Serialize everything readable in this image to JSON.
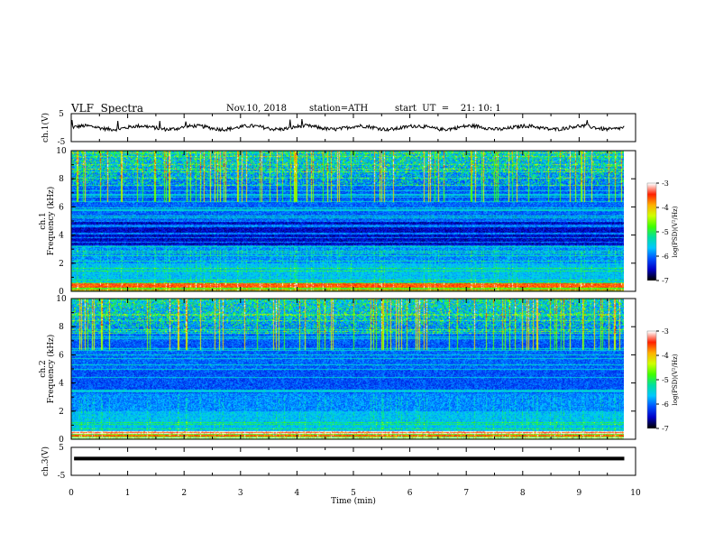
{
  "header": {
    "title": "VLF  Spectra",
    "date": "Nov.10, 2018",
    "station": "station=ATH",
    "start_ut": "start  UT  =    21: 10: 1"
  },
  "chart_data": {
    "type": "heatmap",
    "x_axis": {
      "label": "Time  (min)",
      "range": [
        0,
        10
      ],
      "ticks": [
        "0",
        "1",
        "2",
        "3",
        "4",
        "5",
        "6",
        "7",
        "8",
        "9",
        "10"
      ],
      "data_end": 9.8
    },
    "panels": [
      {
        "name": "ch1-voltage",
        "type": "line",
        "ylabel": "ch.1(V)",
        "ylim": [
          -5,
          5
        ],
        "yticks": [
          "5",
          "-5"
        ],
        "trace_level_approx": 0
      },
      {
        "name": "ch1-spectrogram",
        "type": "heatmap",
        "ylabel_top": "ch.1",
        "ylabel": "Frequency  (kHz)",
        "ylim": [
          0,
          10
        ],
        "yticks": [
          "0",
          "2",
          "4",
          "6",
          "8",
          "10"
        ],
        "colorbar": {
          "label": "log(PSD)(V²/Hz)",
          "range": [
            -7,
            -3
          ],
          "ticks": [
            "-3",
            "-4",
            "-5",
            "-6",
            "-7"
          ]
        }
      },
      {
        "name": "ch2-spectrogram",
        "type": "heatmap",
        "ylabel_top": "ch.2",
        "ylabel": "Frequency  (kHz)",
        "ylim": [
          0,
          10
        ],
        "yticks": [
          "0",
          "2",
          "4",
          "6",
          "8",
          "10"
        ],
        "colorbar": {
          "label": "log(PSD)(V²/Hz)",
          "range": [
            -7,
            -3
          ],
          "ticks": [
            "-3",
            "-4",
            "-5",
            "-6",
            "-7"
          ]
        }
      },
      {
        "name": "ch3-voltage",
        "type": "line",
        "ylabel": "ch.3(V)",
        "ylim": [
          -5,
          5
        ],
        "yticks": [
          "5",
          "-5"
        ],
        "trace_level_approx": 1
      }
    ],
    "colormap": [
      "#000000",
      "#0000c8",
      "#0050ff",
      "#00c8ff",
      "#00e0a0",
      "#40ff00",
      "#d0ff00",
      "#ffb000",
      "#ff2000",
      "#ffffff"
    ]
  }
}
